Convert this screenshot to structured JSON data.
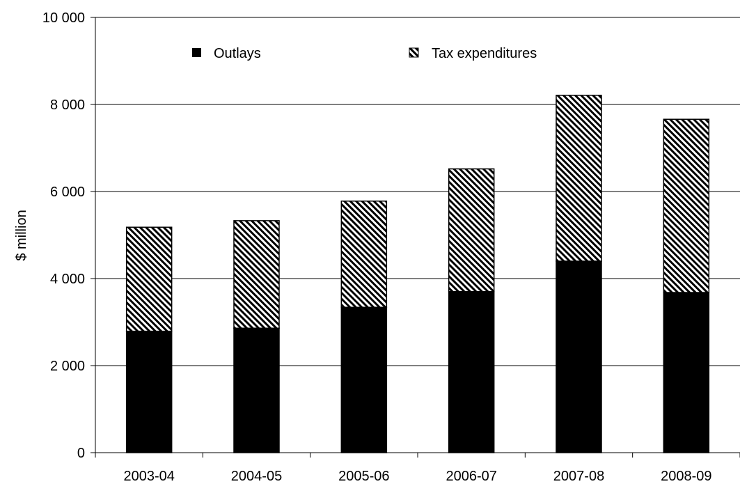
{
  "chart_data": {
    "type": "bar",
    "stacked": true,
    "title": "",
    "xlabel": "",
    "ylabel": "$ million",
    "ylim": [
      0,
      10000
    ],
    "yticks": [
      0,
      2000,
      4000,
      6000,
      8000,
      10000
    ],
    "ytick_labels": [
      "0",
      "2 000",
      "4 000",
      "6 000",
      "8 000",
      "10 000"
    ],
    "grid": "horizontal",
    "legend_position": "top",
    "categories": [
      "2003-04",
      "2004-05",
      "2005-06",
      "2006-07",
      "2007-08",
      "2008-09"
    ],
    "series": [
      {
        "name": "Outlays",
        "fill": "solid",
        "color": "#000000",
        "values": [
          2790,
          2860,
          3340,
          3700,
          4400,
          3680
        ]
      },
      {
        "name": "Tax expenditures",
        "fill": "diagonal-hatch",
        "color": "#000000",
        "values": [
          2390,
          2470,
          2440,
          2820,
          3810,
          3980
        ]
      }
    ]
  }
}
